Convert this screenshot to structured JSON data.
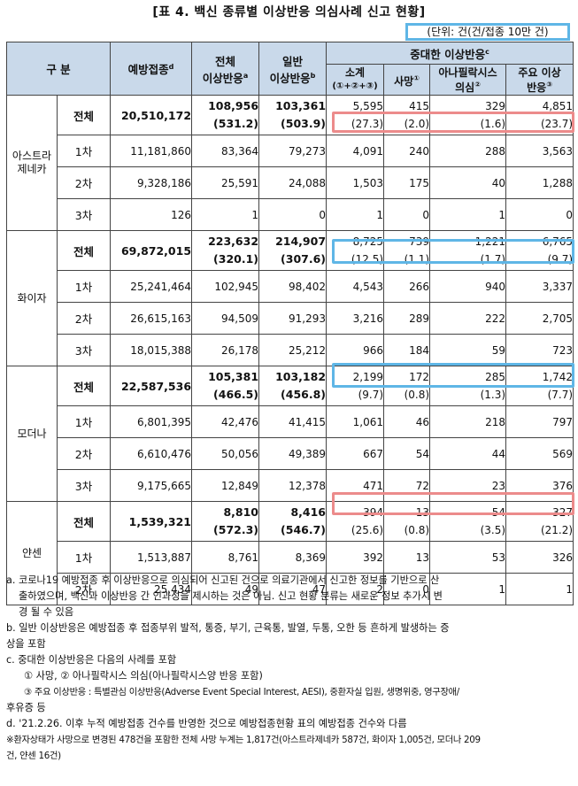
{
  "title": "[표 4. 백신 종류별 이상반응 의심사례 신고 현황]",
  "unit": "(단위: 건(건/접종 10만 건)",
  "header": {
    "category": "구 분",
    "vaccinations": "예방접종",
    "vaccinations_sup": "d",
    "total_adverse_1": "전체",
    "total_adverse_2": "이상반응",
    "total_adverse_sup": "a",
    "general_1": "일반",
    "general_2": "이상반응",
    "general_sup": "b",
    "serious": "중대한 이상반응",
    "serious_sup": "c",
    "subtotal_1": "소계",
    "subtotal_2": "(①+②+③)",
    "death": "사망",
    "death_sup": "①",
    "anaphylaxis_1": "아나필락시스",
    "anaphylaxis_2": "의심",
    "anaphylaxis_sup": "②",
    "major_1": "주요 이상",
    "major_2": "반응",
    "major_sup": "③"
  },
  "groups": [
    {
      "name_1": "아스트라",
      "name_2": "제네카",
      "total": {
        "label": "전체",
        "vacc": "20,510,172",
        "all": "108,956",
        "all_rate": "(531.2)",
        "gen": "103,361",
        "gen_rate": "(503.9)",
        "sub": "5,595",
        "sub_rate": "(27.3)",
        "death": "415",
        "death_rate": "(2.0)",
        "ana": "329",
        "ana_rate": "(1.6)",
        "major": "4,851",
        "major_rate": "(23.7)"
      },
      "rows": [
        {
          "label": "1차",
          "vacc": "11,181,860",
          "all": "83,364",
          "gen": "79,273",
          "sub": "4,091",
          "death": "240",
          "ana": "288",
          "major": "3,563"
        },
        {
          "label": "2차",
          "vacc": "9,328,186",
          "all": "25,591",
          "gen": "24,088",
          "sub": "1,503",
          "death": "175",
          "ana": "40",
          "major": "1,288"
        },
        {
          "label": "3차",
          "vacc": "126",
          "all": "1",
          "gen": "0",
          "sub": "1",
          "death": "0",
          "ana": "1",
          "major": "0"
        }
      ]
    },
    {
      "name_1": "화이자",
      "name_2": "",
      "total": {
        "label": "전체",
        "vacc": "69,872,015",
        "all": "223,632",
        "all_rate": "(320.1)",
        "gen": "214,907",
        "gen_rate": "(307.6)",
        "sub": "8,725",
        "sub_rate": "(12.5)",
        "death": "739",
        "death_rate": "(1.1)",
        "ana": "1,221",
        "ana_rate": "(1.7)",
        "major": "6,765",
        "major_rate": "(9.7)"
      },
      "rows": [
        {
          "label": "1차",
          "vacc": "25,241,464",
          "all": "102,945",
          "gen": "98,402",
          "sub": "4,543",
          "death": "266",
          "ana": "940",
          "major": "3,337"
        },
        {
          "label": "2차",
          "vacc": "26,615,163",
          "all": "94,509",
          "gen": "91,293",
          "sub": "3,216",
          "death": "289",
          "ana": "222",
          "major": "2,705"
        },
        {
          "label": "3차",
          "vacc": "18,015,388",
          "all": "26,178",
          "gen": "25,212",
          "sub": "966",
          "death": "184",
          "ana": "59",
          "major": "723"
        }
      ]
    },
    {
      "name_1": "모더나",
      "name_2": "",
      "total": {
        "label": "전체",
        "vacc": "22,587,536",
        "all": "105,381",
        "all_rate": "(466.5)",
        "gen": "103,182",
        "gen_rate": "(456.8)",
        "sub": "2,199",
        "sub_rate": "(9.7)",
        "death": "172",
        "death_rate": "(0.8)",
        "ana": "285",
        "ana_rate": "(1.3)",
        "major": "1,742",
        "major_rate": "(7.7)"
      },
      "rows": [
        {
          "label": "1차",
          "vacc": "6,801,395",
          "all": "42,476",
          "gen": "41,415",
          "sub": "1,061",
          "death": "46",
          "ana": "218",
          "major": "797"
        },
        {
          "label": "2차",
          "vacc": "6,610,476",
          "all": "50,056",
          "gen": "49,389",
          "sub": "667",
          "death": "54",
          "ana": "44",
          "major": "569"
        },
        {
          "label": "3차",
          "vacc": "9,175,665",
          "all": "12,849",
          "gen": "12,378",
          "sub": "471",
          "death": "72",
          "ana": "23",
          "major": "376"
        }
      ]
    },
    {
      "name_1": "얀센",
      "name_2": "",
      "total": {
        "label": "전체",
        "vacc": "1,539,321",
        "all": "8,810",
        "all_rate": "(572.3)",
        "gen": "8,416",
        "gen_rate": "(546.7)",
        "sub": "394",
        "sub_rate": "(25.6)",
        "death": "13",
        "death_rate": "(0.8)",
        "ana": "54",
        "ana_rate": "(3.5)",
        "major": "327",
        "major_rate": "(21.2)"
      },
      "rows": [
        {
          "label": "1차",
          "vacc": "1,513,887",
          "all": "8,761",
          "gen": "8,369",
          "sub": "392",
          "death": "13",
          "ana": "53",
          "major": "326"
        },
        {
          "label": "2차",
          "vacc": "25,434",
          "all": "49",
          "gen": "47",
          "sub": "2",
          "death": "0",
          "ana": "1",
          "major": "1"
        }
      ]
    }
  ],
  "notes": {
    "a1": "a. 코로나19 예방접종 후 이상반응으로 의심되어 신고된 건으로 의료기관에서 신고한 정보를 기반으로 산",
    "a2": "출하였으며, 백신과 이상반응 간 인과성을 제시하는 것은 아님. 신고 현황 분류는 새로운 정보 추가시 변",
    "a3": "경 될 수 있음",
    "b1": "b. 일반 이상반응은 예방접종 후 접종부위 발적, 통증, 부기, 근육통, 발열, 두통, 오한 등 흔하게 발생하는 증",
    "b2": "상을 포함",
    "c1": "c. 중대한 이상반응은 다음의 사례를 포함",
    "c2": "① 사망, ② 아나필락시스 의심(아나필락시스양 반응 포함)",
    "c3": "③ 주요 이상반응 : 특별관심 이상반응(Adverse Event Special Interest, AESI), 중환자실 입원, 생명위중, 영구장애/",
    "c4": "후유증 등",
    "d1": "d. '21.2.26. 이후 누적 예방접종 건수를 반영한 것으로 예방접종현황 표의 예방접종 건수와 다름",
    "e1": "※환자상태가 사망으로 변경된 478건을 포함한 전체 사망 누계는 1,817건(아스트라제네카 587건, 화이자 1,005건, 모더나 209",
    "e2": "건, 얀센 16건)"
  },
  "highlight_colors": {
    "red": "#ec8b8b",
    "blue": "#5fb6e6"
  }
}
